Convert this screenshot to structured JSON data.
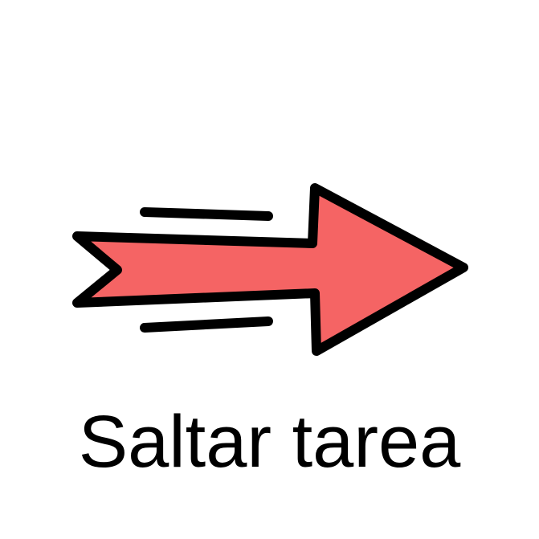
{
  "card": {
    "label": "Saltar tarea",
    "icon": "skip-arrow-icon"
  },
  "colors": {
    "arrow_fill": "#F56464",
    "outline": "#000000",
    "background": "#FFFFFF"
  }
}
